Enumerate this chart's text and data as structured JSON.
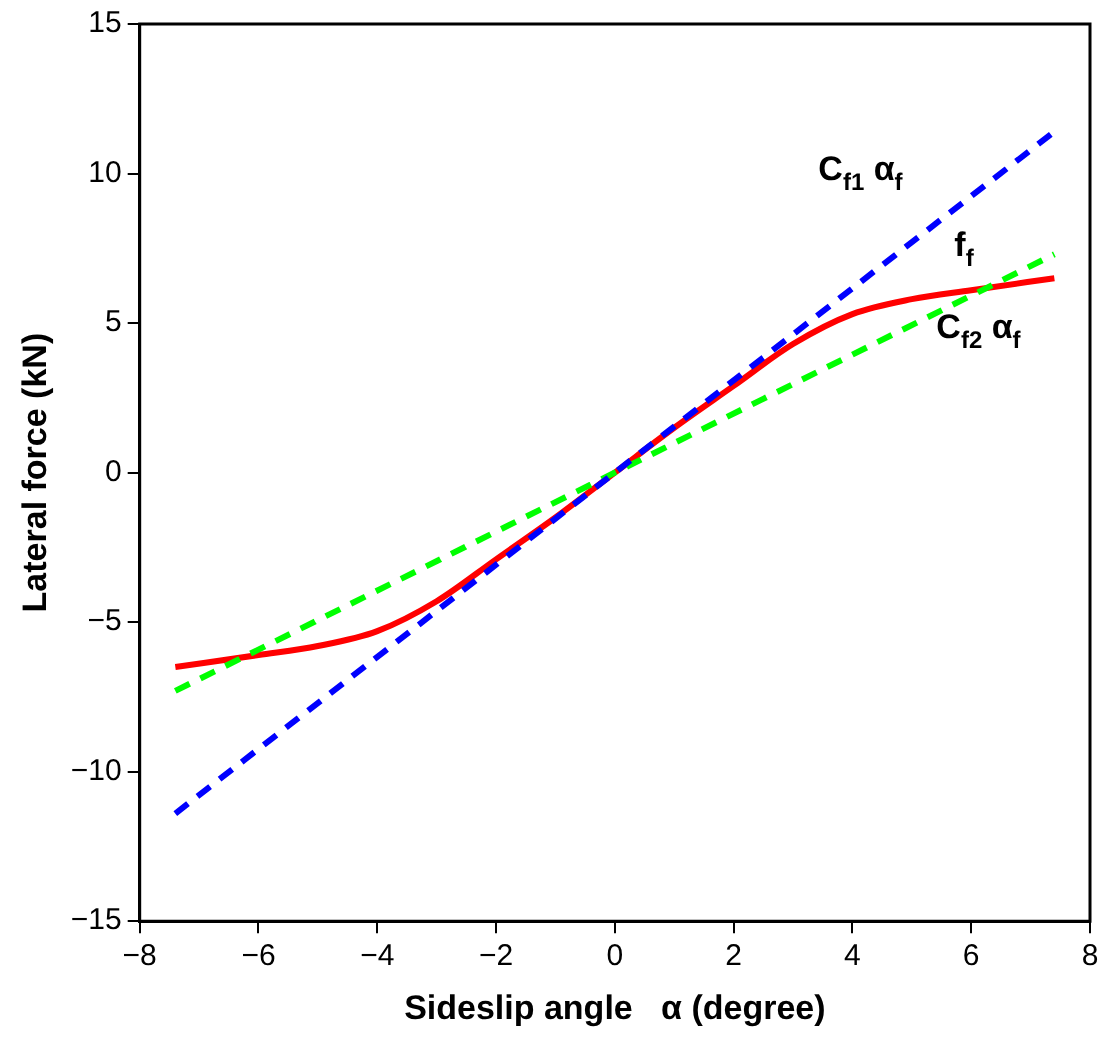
{
  "chart_data": {
    "type": "line",
    "xlabel": "Sideslip angle   α (degree)",
    "ylabel": "Lateral force (kN)",
    "xlim": [
      -8,
      8
    ],
    "xticks": [
      -8,
      -6,
      -4,
      -2,
      0,
      2,
      4,
      6,
      8
    ],
    "ylim": [
      -15,
      15
    ],
    "yticks": [
      -15,
      -10,
      -5,
      0,
      5,
      10,
      15
    ],
    "grid": false,
    "legend": false,
    "marker": "none",
    "series": [
      {
        "name": "C$_{f1}$ α$_{f}$",
        "color": "#0000ff",
        "line_style": "dashed",
        "x": [
          -7.4,
          7.4
        ],
        "values": [
          -11.4,
          11.4
        ]
      },
      {
        "name": "C$_{f2}$ α$_{f}$",
        "color": "#00ff00",
        "line_style": "dashed",
        "x": [
          -7.4,
          7.4
        ],
        "values": [
          -7.3,
          7.3
        ]
      },
      {
        "name": "f$_{f}$",
        "color": "#ff0000",
        "line_style": "solid",
        "x": [
          -7.4,
          -6,
          -5,
          -4,
          -3,
          -2,
          -1,
          0,
          1,
          2,
          3,
          4,
          5,
          6,
          7.4
        ],
        "values": [
          -6.5,
          -6.1,
          -5.8,
          -5.3,
          -4.3,
          -2.9,
          -1.5,
          0,
          1.5,
          2.9,
          4.3,
          5.3,
          5.8,
          6.1,
          6.5
        ]
      }
    ]
  }
}
